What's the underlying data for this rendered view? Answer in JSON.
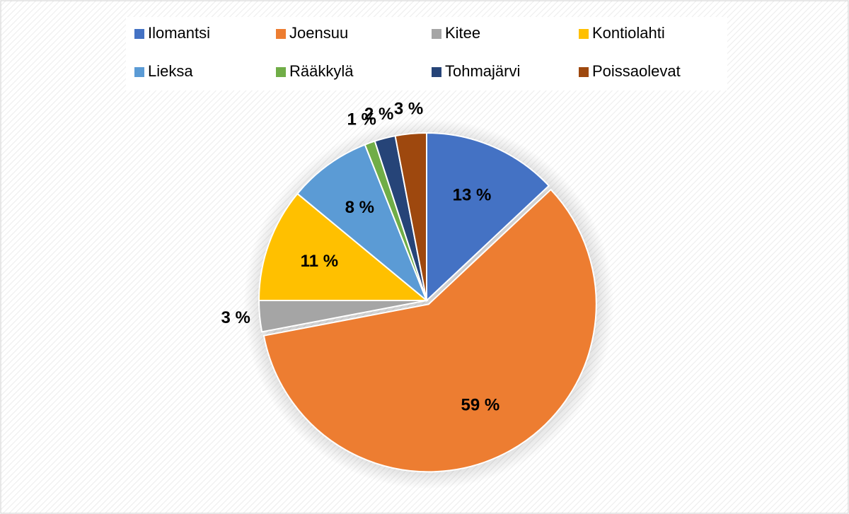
{
  "chart_data": {
    "type": "pie",
    "categories": [
      "Ilomantsi",
      "Joensuu",
      "Kitee",
      "Kontiolahti",
      "Lieksa",
      "Rääkkylä",
      "Tohmajärvi",
      "Poissaolevat"
    ],
    "values": [
      13,
      59,
      3,
      11,
      8,
      1,
      2,
      3
    ],
    "value_labels": [
      "13 %",
      "59 %",
      "3 %",
      "11 %",
      "8 %",
      "1 %",
      "2 %",
      "3 %"
    ],
    "colors": [
      "#4472c4",
      "#ed7d31",
      "#a5a5a5",
      "#ffc000",
      "#5b9bd5",
      "#70ad47",
      "#264478",
      "#9e480e"
    ],
    "legend": "top"
  }
}
